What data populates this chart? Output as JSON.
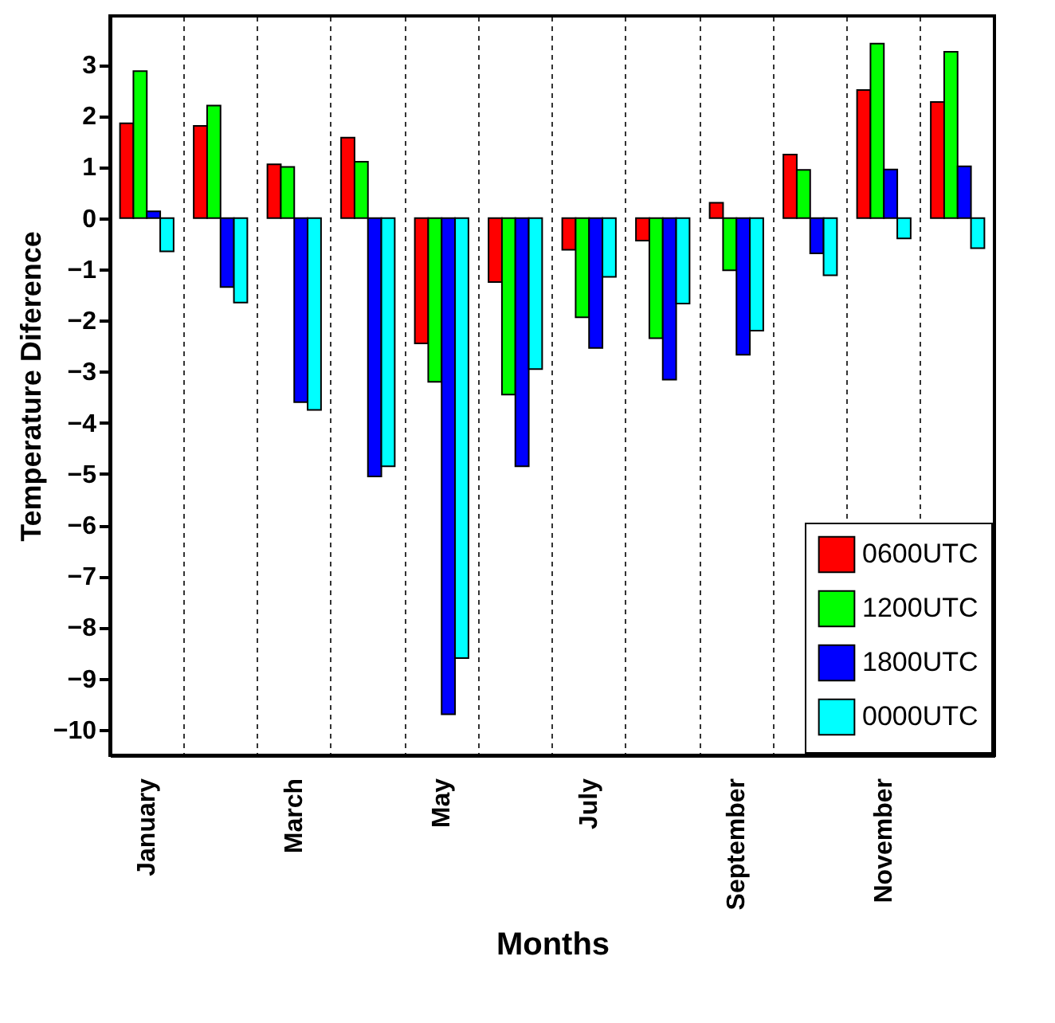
{
  "chart_data": {
    "type": "bar",
    "xlabel": "Months",
    "ylabel": "Temperature Diference",
    "categories": [
      "January",
      null,
      "March",
      null,
      "May",
      null,
      "July",
      null,
      "September",
      null,
      "November",
      null
    ],
    "series": [
      {
        "name": "0600UTC",
        "color": "#ff0000",
        "values": [
          1.85,
          1.8,
          1.05,
          1.57,
          -2.45,
          -1.25,
          -0.62,
          -0.44,
          0.3,
          1.24,
          2.5,
          2.27
        ]
      },
      {
        "name": "1200UTC",
        "color": "#00ff00",
        "values": [
          2.87,
          2.2,
          1.0,
          1.1,
          -3.2,
          -3.45,
          -1.94,
          -2.35,
          -1.02,
          0.94,
          3.41,
          3.25
        ]
      },
      {
        "name": "1800UTC",
        "color": "#0000ff",
        "values": [
          0.13,
          -1.35,
          -3.6,
          -5.05,
          -9.7,
          -4.85,
          -2.54,
          -3.16,
          -2.67,
          -0.69,
          0.95,
          1.01
        ]
      },
      {
        "name": "0000UTC",
        "color": "#00ffff",
        "values": [
          -0.65,
          -1.65,
          -3.75,
          -4.85,
          -8.6,
          -2.95,
          -1.15,
          -1.67,
          -2.2,
          -1.12,
          -0.4,
          -0.59
        ]
      }
    ],
    "ylim": [
      -10.5,
      3.95
    ],
    "yticks": [
      -10,
      -9,
      -8,
      -7,
      -6,
      -5,
      -4,
      -3,
      -2,
      -1,
      0,
      1,
      2,
      3
    ],
    "grid": "x",
    "legend": "bottom right"
  }
}
